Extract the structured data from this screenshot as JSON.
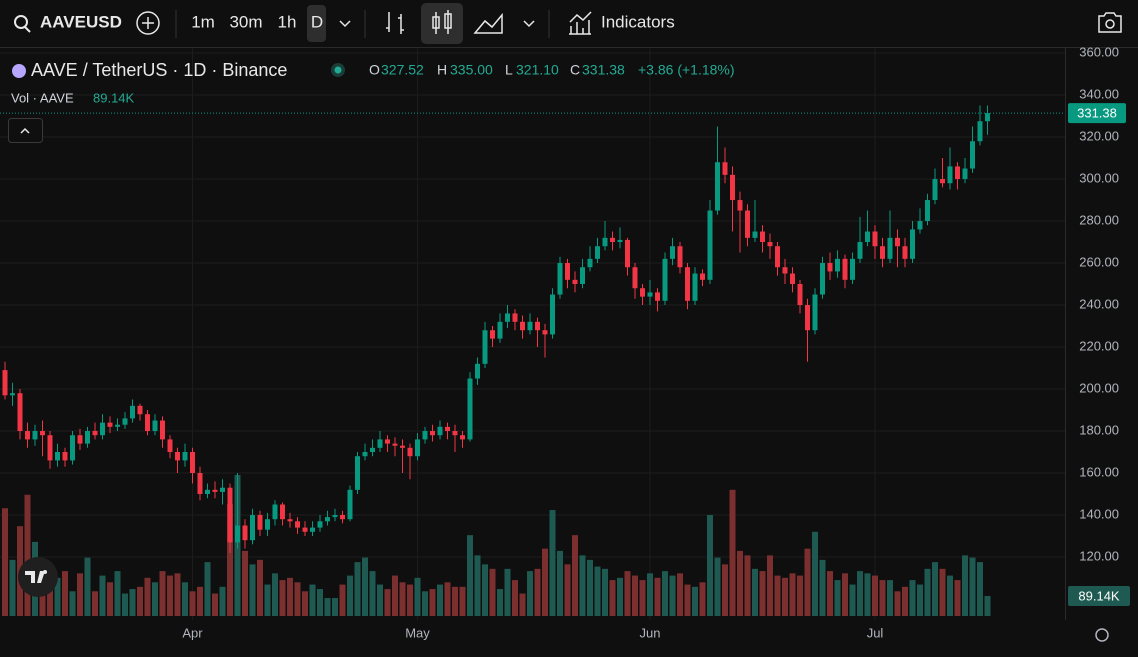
{
  "toolbar": {
    "symbol": "AAVEUSD",
    "intervals": [
      "1m",
      "30m",
      "1h",
      "D"
    ],
    "indicators": "Indicators"
  },
  "legend": {
    "title": "AAVE / TetherUS · 1D · Binance",
    "o_label": "O",
    "o": "327.52",
    "h_label": "H",
    "h": "335.00",
    "l_label": "L",
    "l": "321.10",
    "c_label": "C",
    "c": "331.38",
    "change": "+3.86 (+1.18%)",
    "vol_label": "Vol · AAVE",
    "vol": "89.14K"
  },
  "chart_data": {
    "type": "candlestick",
    "categories": [
      null,
      null,
      null,
      null,
      null,
      null,
      null,
      null,
      null,
      null,
      null,
      null,
      null,
      null,
      null,
      null,
      null,
      null,
      null,
      null,
      null,
      null,
      null,
      null,
      null,
      "Apr",
      null,
      null,
      null,
      null,
      null,
      null,
      null,
      null,
      null,
      null,
      null,
      null,
      null,
      null,
      null,
      null,
      null,
      null,
      null,
      null,
      null,
      null,
      null,
      null,
      null,
      null,
      null,
      null,
      null,
      "May",
      null,
      null,
      null,
      null,
      null,
      null,
      null,
      null,
      null,
      null,
      null,
      null,
      null,
      null,
      null,
      null,
      null,
      null,
      null,
      null,
      null,
      null,
      null,
      null,
      null,
      null,
      null,
      null,
      null,
      null,
      "Jun",
      null,
      null,
      null,
      null,
      null,
      null,
      null,
      null,
      null,
      null,
      null,
      null,
      null,
      null,
      null,
      null,
      null,
      null,
      null,
      null,
      null,
      null,
      null,
      null,
      null,
      null,
      null,
      null,
      null,
      "Jul",
      null,
      null,
      null,
      null,
      null,
      null,
      null,
      null,
      null,
      null,
      null,
      null,
      null,
      null,
      null
    ],
    "open": [
      209,
      197,
      198,
      180,
      176,
      180,
      178,
      166,
      170,
      166,
      178,
      174,
      180,
      178,
      184,
      182,
      183,
      186,
      192,
      188,
      180,
      185,
      176,
      170,
      166,
      170,
      160,
      150,
      152,
      151,
      153,
      127,
      135,
      128,
      140,
      133,
      138,
      145,
      138,
      137,
      134,
      132,
      134,
      137,
      139,
      140,
      138,
      152,
      168,
      170,
      172,
      176,
      174,
      173,
      172,
      168,
      176,
      180,
      178,
      182,
      180,
      178,
      176,
      205,
      212,
      228,
      224,
      232,
      236,
      232,
      228,
      232,
      228,
      226,
      245,
      260,
      252,
      250,
      258,
      262,
      268,
      272,
      270,
      271,
      258,
      248,
      244,
      246,
      242,
      262,
      268,
      258,
      242,
      255,
      252,
      285,
      308,
      302,
      290,
      285,
      272,
      275,
      270,
      268,
      258,
      255,
      250,
      240,
      228,
      245,
      260,
      256,
      262,
      252,
      262,
      270,
      275,
      268,
      262,
      272,
      268,
      262,
      276,
      280,
      290,
      300,
      298,
      306,
      300,
      305,
      318,
      327.52
    ],
    "high": [
      213,
      203,
      200,
      184,
      183,
      185,
      180,
      174,
      172,
      180,
      181,
      182,
      184,
      188,
      187,
      186,
      189,
      195,
      193,
      190,
      188,
      187,
      178,
      172,
      174,
      172,
      163,
      155,
      156,
      157,
      155,
      160,
      138,
      143,
      142,
      141,
      147,
      146,
      141,
      139,
      137,
      137,
      140,
      142,
      143,
      142,
      154,
      170,
      174,
      176,
      180,
      178,
      177,
      176,
      174,
      179,
      182,
      183,
      185,
      184,
      183,
      180,
      208,
      215,
      232,
      230,
      236,
      240,
      238,
      235,
      236,
      234,
      231,
      248,
      263,
      262,
      256,
      262,
      268,
      272,
      280,
      275,
      277,
      272,
      260,
      250,
      252,
      248,
      265,
      272,
      270,
      260,
      258,
      257,
      290,
      325,
      315,
      306,
      294,
      288,
      290,
      278,
      274,
      270,
      262,
      258,
      252,
      243,
      248,
      263,
      265,
      266,
      264,
      265,
      282,
      285,
      278,
      272,
      285,
      276,
      272,
      280,
      286,
      293,
      305,
      310,
      315,
      308,
      310,
      325,
      335,
      335
    ],
    "low": [
      195,
      192,
      176,
      172,
      173,
      168,
      162,
      163,
      163,
      164,
      171,
      172,
      176,
      176,
      179,
      180,
      181,
      184,
      185,
      178,
      178,
      172,
      167,
      160,
      163,
      155,
      147,
      148,
      148,
      145,
      122,
      124,
      124,
      126,
      130,
      130,
      135,
      135,
      134,
      131,
      130,
      130,
      132,
      135,
      137,
      136,
      137,
      150,
      166,
      168,
      170,
      170,
      168,
      160,
      157,
      166,
      174,
      175,
      176,
      176,
      170,
      172,
      175,
      202,
      210,
      220,
      222,
      229,
      228,
      224,
      226,
      220,
      215,
      224,
      243,
      248,
      246,
      248,
      256,
      260,
      266,
      266,
      267,
      254,
      243,
      240,
      240,
      237,
      240,
      259,
      255,
      238,
      240,
      249,
      250,
      283,
      298,
      275,
      265,
      268,
      270,
      265,
      262,
      254,
      250,
      246,
      236,
      213,
      226,
      243,
      252,
      253,
      248,
      250,
      260,
      268,
      262,
      258,
      260,
      258,
      258,
      260,
      274,
      278,
      288,
      296,
      295,
      295,
      298,
      303,
      316,
      321.1
    ],
    "close": [
      197,
      198,
      180,
      176,
      180,
      178,
      166,
      170,
      166,
      178,
      174,
      180,
      178,
      184,
      182,
      183,
      186,
      192,
      188,
      180,
      185,
      176,
      170,
      166,
      170,
      160,
      150,
      152,
      151,
      153,
      127,
      135,
      128,
      140,
      133,
      138,
      145,
      138,
      137,
      134,
      132,
      134,
      137,
      139,
      140,
      138,
      152,
      168,
      170,
      172,
      176,
      174,
      173,
      172,
      168,
      176,
      180,
      178,
      182,
      180,
      178,
      176,
      205,
      212,
      228,
      224,
      232,
      236,
      232,
      228,
      232,
      228,
      226,
      245,
      260,
      252,
      250,
      258,
      262,
      268,
      272,
      270,
      271,
      258,
      248,
      244,
      246,
      242,
      262,
      268,
      258,
      242,
      255,
      252,
      285,
      308,
      302,
      290,
      285,
      272,
      275,
      270,
      268,
      258,
      255,
      250,
      240,
      228,
      245,
      260,
      256,
      262,
      252,
      262,
      270,
      275,
      268,
      262,
      272,
      268,
      262,
      276,
      280,
      290,
      300,
      298,
      306,
      300,
      305,
      318,
      327.52,
      331.38
    ],
    "volume": [
      480000,
      250000,
      400000,
      540000,
      330000,
      150000,
      120000,
      170000,
      200000,
      110000,
      190000,
      260000,
      110000,
      180000,
      150000,
      200000,
      100000,
      120000,
      130000,
      170000,
      150000,
      200000,
      180000,
      190000,
      150000,
      110000,
      130000,
      240000,
      100000,
      130000,
      500000,
      628000,
      290000,
      230000,
      250000,
      140000,
      190000,
      160000,
      170000,
      150000,
      110000,
      140000,
      120000,
      80000,
      80000,
      140000,
      180000,
      240000,
      260000,
      200000,
      140000,
      120000,
      180000,
      150000,
      140000,
      170000,
      110000,
      120000,
      140000,
      150000,
      130000,
      130000,
      360000,
      270000,
      230000,
      210000,
      120000,
      210000,
      160000,
      100000,
      200000,
      210000,
      300000,
      472000,
      290000,
      230000,
      360000,
      270000,
      250000,
      220000,
      210000,
      160000,
      170000,
      200000,
      180000,
      160000,
      190000,
      170000,
      200000,
      180000,
      190000,
      140000,
      130000,
      150000,
      450000,
      260000,
      230000,
      562000,
      290000,
      270000,
      210000,
      200000,
      270000,
      180000,
      170000,
      190000,
      180000,
      300000,
      375000,
      250000,
      200000,
      160000,
      190000,
      140000,
      200000,
      190000,
      180000,
      160000,
      160000,
      110000,
      130000,
      160000,
      140000,
      210000,
      240000,
      210000,
      180000,
      160000,
      270000,
      260000,
      240000,
      89140
    ],
    "volume_value_labels_last": "89.14K",
    "ylim": [
      90,
      362.4
    ],
    "yticks": [
      {
        "value": 120,
        "label": "120.00"
      },
      {
        "value": 140,
        "label": "140.00"
      },
      {
        "value": 160,
        "label": "160.00"
      },
      {
        "value": 180,
        "label": "180.00"
      },
      {
        "value": 200,
        "label": "200.00"
      },
      {
        "value": 220,
        "label": "220.00"
      },
      {
        "value": 240,
        "label": "240.00"
      },
      {
        "value": 260,
        "label": "260.00"
      },
      {
        "value": 280,
        "label": "280.00"
      },
      {
        "value": 300,
        "label": "300.00"
      },
      {
        "value": 320,
        "label": "320.00"
      },
      {
        "value": 340,
        "label": "340.00"
      },
      {
        "value": 360,
        "label": "360.00"
      }
    ],
    "last_price_label": "331.38",
    "grid": true,
    "up_color": "#089981",
    "down_color": "#f23645",
    "volume_up_color": "#1e5a52",
    "volume_down_color": "#7b2f2f"
  }
}
